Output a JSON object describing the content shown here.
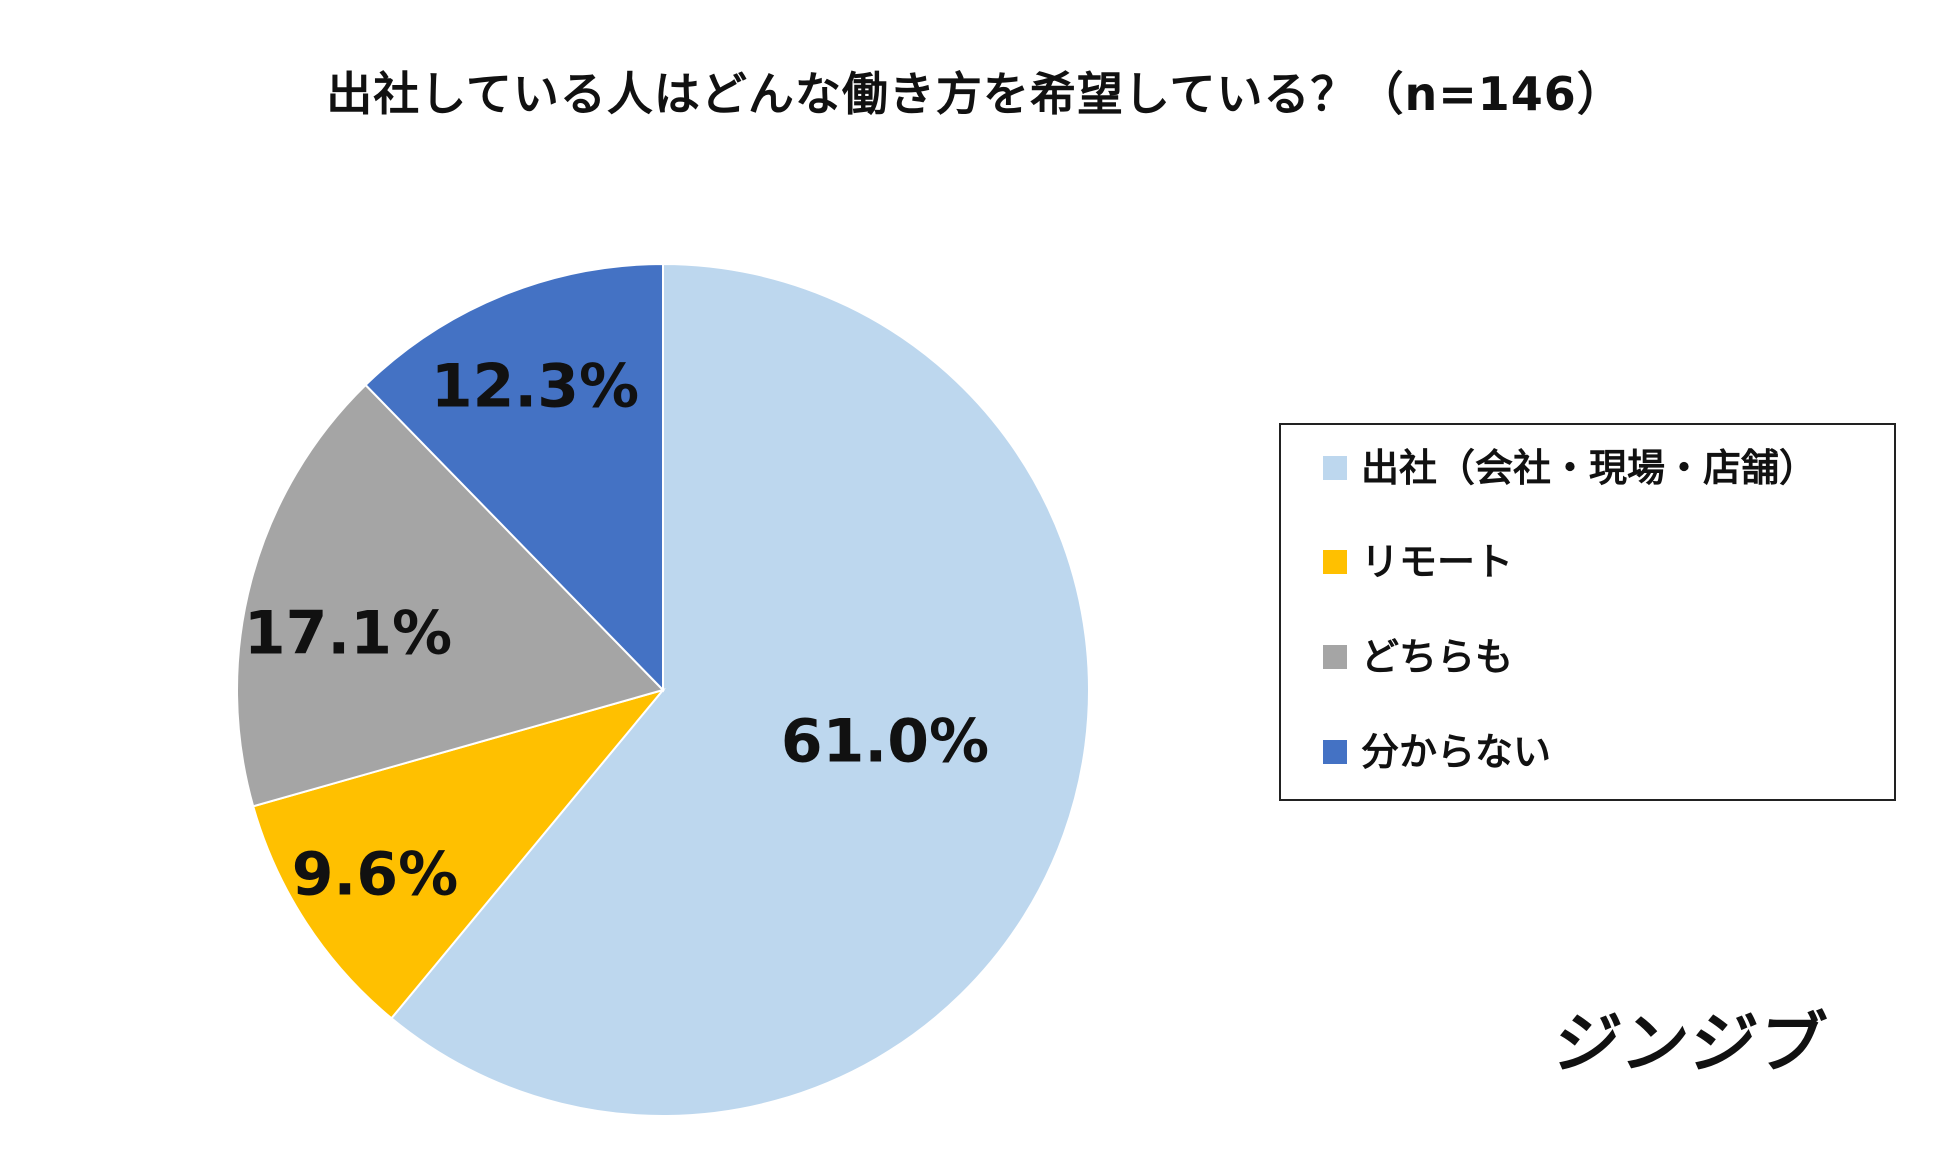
{
  "title": "出社している人はどんな働き方を希望している？（n=146）",
  "brand": "ジンジブ",
  "colors": {
    "office": "#BDD7EE",
    "remote": "#FFC000",
    "either": "#A5A5A5",
    "unknown": "#4472C4"
  },
  "chart_data": {
    "type": "pie",
    "title": "出社している人はどんな働き方を希望している？（n=146）",
    "legend_position": "right",
    "start_angle": "12 o'clock",
    "direction": "clockwise",
    "series": [
      {
        "name": "出社（会社・現場・店舗）",
        "value": 61.0,
        "label": "61.0%",
        "color": "#BDD7EE"
      },
      {
        "name": "リモート",
        "value": 9.6,
        "label": "9.6%",
        "color": "#FFC000"
      },
      {
        "name": "どちらも",
        "value": 17.1,
        "label": "17.1%",
        "color": "#A5A5A5"
      },
      {
        "name": "分からない",
        "value": 12.3,
        "label": "12.3%",
        "color": "#4472C4"
      }
    ]
  },
  "legend": {
    "items": [
      {
        "label": "出社（会社・現場・店舗）",
        "color": "#BDD7EE"
      },
      {
        "label": "リモート",
        "color": "#FFC000"
      },
      {
        "label": "どちらも",
        "color": "#A5A5A5"
      },
      {
        "label": "分からない",
        "color": "#4472C4"
      }
    ]
  }
}
